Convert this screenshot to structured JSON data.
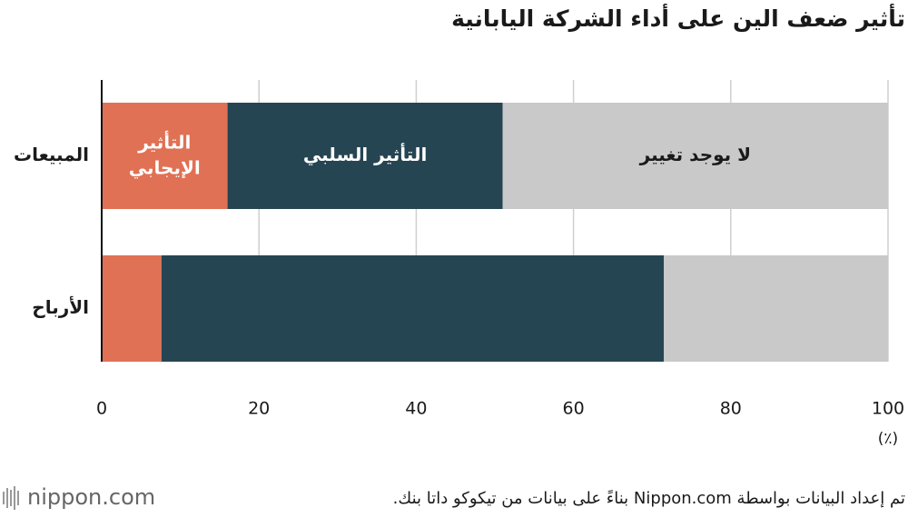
{
  "chart_data": {
    "type": "stacked-barh",
    "title": "تأثير ضعف الين على أداء الشركة اليابانية",
    "categories": [
      "المبيعات",
      "الأرباح"
    ],
    "series": [
      {
        "name": "التأثير الإيجابي",
        "color": "#e07154",
        "values": [
          16,
          7.6
        ]
      },
      {
        "name": "التأثير السلبي",
        "color": "#264553",
        "values": [
          35,
          63.9
        ]
      },
      {
        "name": "لا يوجد تغيير",
        "color": "#c9c9c9",
        "values": [
          49,
          28.5
        ]
      }
    ],
    "xlim": [
      0,
      100
    ],
    "xticks": [
      0,
      20,
      40,
      60,
      80,
      100
    ],
    "grid": true,
    "xlabel": "(٪)",
    "source": "تم إعداد البيانات بواسطة Nippon.com بناءً على بيانات من  تيكوكو داتا بنك.",
    "logo": "nippon.com"
  }
}
